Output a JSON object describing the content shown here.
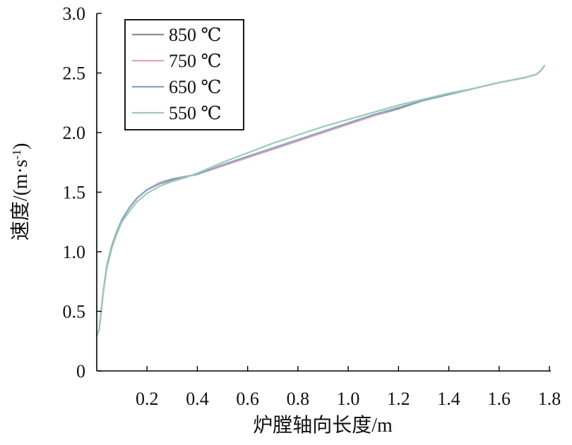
{
  "chart_data": {
    "type": "line",
    "xlabel": "炉膛轴向长度/m",
    "ylabel": "速度/(m·s",
    "ylabel_sup": "-1",
    "ylabel_tail": ")",
    "xlim": [
      0.0,
      1.8
    ],
    "ylim": [
      0.0,
      3.0
    ],
    "xticks": [
      0.2,
      0.4,
      0.6,
      0.8,
      1.0,
      1.2,
      1.4,
      1.6,
      1.8
    ],
    "xtick_labels": [
      "0.2",
      "0.4",
      "0.6",
      "0.8",
      "1.0",
      "1.2",
      "1.4",
      "1.6",
      "1.8"
    ],
    "yticks": [
      0,
      0.5,
      1.0,
      1.5,
      2.0,
      2.5,
      3.0
    ],
    "ytick_labels": [
      "0",
      "0.5",
      "1.0",
      "1.5",
      "2.0",
      "2.5",
      "3.0"
    ],
    "grid": false,
    "legend": "top-left",
    "series": [
      {
        "name": "850 ℃",
        "color": "#8e8e96",
        "x": [
          0.0,
          0.005,
          0.01,
          0.015,
          0.025,
          0.04,
          0.06,
          0.08,
          0.1,
          0.13,
          0.16,
          0.2,
          0.25,
          0.3,
          0.35,
          0.4,
          0.5,
          0.6,
          0.7,
          0.8,
          0.9,
          1.0,
          1.1,
          1.2,
          1.3,
          1.4,
          1.5,
          1.6,
          1.7,
          1.75,
          1.77,
          1.78
        ],
        "y": [
          0.3,
          0.32,
          0.35,
          0.45,
          0.65,
          0.88,
          1.05,
          1.17,
          1.27,
          1.37,
          1.45,
          1.52,
          1.58,
          1.61,
          1.63,
          1.65,
          1.72,
          1.79,
          1.86,
          1.93,
          2.0,
          2.07,
          2.14,
          2.2,
          2.27,
          2.32,
          2.37,
          2.42,
          2.46,
          2.49,
          2.53,
          2.56
        ]
      },
      {
        "name": "750 ℃",
        "color": "#e9a2b6",
        "x": [
          0.0,
          0.005,
          0.01,
          0.015,
          0.025,
          0.04,
          0.06,
          0.08,
          0.1,
          0.13,
          0.16,
          0.2,
          0.25,
          0.3,
          0.35,
          0.4,
          0.5,
          0.6,
          0.7,
          0.8,
          0.9,
          1.0,
          1.1,
          1.2,
          1.3,
          1.4,
          1.5,
          1.6,
          1.7,
          1.75,
          1.77,
          1.78
        ],
        "y": [
          0.3,
          0.32,
          0.35,
          0.45,
          0.65,
          0.88,
          1.05,
          1.17,
          1.27,
          1.37,
          1.45,
          1.52,
          1.58,
          1.6,
          1.63,
          1.65,
          1.72,
          1.79,
          1.86,
          1.93,
          2.0,
          2.07,
          2.14,
          2.21,
          2.27,
          2.32,
          2.37,
          2.42,
          2.46,
          2.49,
          2.53,
          2.56
        ]
      },
      {
        "name": "650 ℃",
        "color": "#86a4c9",
        "x": [
          0.0,
          0.005,
          0.01,
          0.015,
          0.025,
          0.04,
          0.06,
          0.08,
          0.1,
          0.13,
          0.16,
          0.2,
          0.25,
          0.3,
          0.35,
          0.4,
          0.5,
          0.6,
          0.7,
          0.8,
          0.9,
          1.0,
          1.1,
          1.2,
          1.3,
          1.4,
          1.5,
          1.6,
          1.7,
          1.75,
          1.77,
          1.78
        ],
        "y": [
          0.3,
          0.32,
          0.35,
          0.45,
          0.65,
          0.88,
          1.05,
          1.17,
          1.27,
          1.37,
          1.45,
          1.52,
          1.57,
          1.6,
          1.63,
          1.65,
          1.73,
          1.8,
          1.87,
          1.94,
          2.01,
          2.08,
          2.15,
          2.21,
          2.27,
          2.32,
          2.37,
          2.42,
          2.46,
          2.49,
          2.53,
          2.56
        ]
      },
      {
        "name": "550 ℃",
        "color": "#9ccbb0",
        "x": [
          0.0,
          0.005,
          0.01,
          0.015,
          0.025,
          0.04,
          0.06,
          0.08,
          0.1,
          0.13,
          0.16,
          0.2,
          0.25,
          0.3,
          0.35,
          0.4,
          0.5,
          0.6,
          0.7,
          0.8,
          0.9,
          1.0,
          1.1,
          1.2,
          1.3,
          1.4,
          1.5,
          1.6,
          1.7,
          1.75,
          1.77,
          1.78
        ],
        "y": [
          0.3,
          0.32,
          0.35,
          0.45,
          0.64,
          0.86,
          1.03,
          1.15,
          1.25,
          1.34,
          1.42,
          1.49,
          1.55,
          1.59,
          1.62,
          1.66,
          1.75,
          1.83,
          1.91,
          1.98,
          2.05,
          2.11,
          2.17,
          2.23,
          2.28,
          2.33,
          2.37,
          2.42,
          2.46,
          2.49,
          2.53,
          2.56
        ]
      }
    ]
  }
}
